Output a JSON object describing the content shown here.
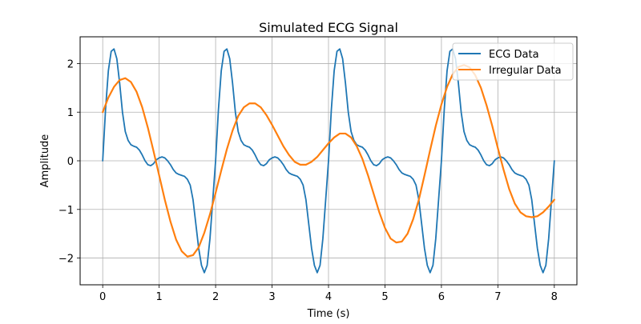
{
  "chart_data": {
    "type": "line",
    "title": "Simulated ECG Signal",
    "xlabel": "Time (s)",
    "ylabel": "Amplitude",
    "xlim": [
      -0.4,
      8.4
    ],
    "ylim": [
      -2.55,
      2.55
    ],
    "x_ticks": [
      0,
      1,
      2,
      3,
      4,
      5,
      6,
      7,
      8
    ],
    "x_tick_labels": [
      "0",
      "1",
      "2",
      "3",
      "4",
      "5",
      "6",
      "7",
      "8"
    ],
    "y_ticks": [
      -2,
      -1,
      0,
      1,
      2
    ],
    "y_tick_labels": [
      "−2",
      "−1",
      "0",
      "1",
      "2"
    ],
    "grid": true,
    "legend_position": "top-right",
    "series": [
      {
        "name": "ECG Data",
        "color": "#1f77b4",
        "points": [
          [
            0.0,
            0.0
          ],
          [
            0.05,
            1.05
          ],
          [
            0.1,
            1.85
          ],
          [
            0.15,
            2.25
          ],
          [
            0.2,
            2.3
          ],
          [
            0.25,
            2.1
          ],
          [
            0.3,
            1.6
          ],
          [
            0.35,
            1.0
          ],
          [
            0.4,
            0.6
          ],
          [
            0.45,
            0.42
          ],
          [
            0.5,
            0.33
          ],
          [
            0.55,
            0.3
          ],
          [
            0.6,
            0.28
          ],
          [
            0.65,
            0.22
          ],
          [
            0.7,
            0.12
          ],
          [
            0.75,
            0.0
          ],
          [
            0.8,
            -0.08
          ],
          [
            0.85,
            -0.1
          ],
          [
            0.9,
            -0.06
          ],
          [
            0.95,
            0.02
          ],
          [
            1.0,
            0.06
          ],
          [
            1.05,
            0.08
          ],
          [
            1.1,
            0.06
          ],
          [
            1.15,
            0.0
          ],
          [
            1.2,
            -0.08
          ],
          [
            1.25,
            -0.18
          ],
          [
            1.3,
            -0.25
          ],
          [
            1.35,
            -0.28
          ],
          [
            1.4,
            -0.3
          ],
          [
            1.45,
            -0.32
          ],
          [
            1.5,
            -0.38
          ],
          [
            1.55,
            -0.5
          ],
          [
            1.6,
            -0.8
          ],
          [
            1.65,
            -1.3
          ],
          [
            1.7,
            -1.8
          ],
          [
            1.75,
            -2.15
          ],
          [
            1.8,
            -2.3
          ],
          [
            1.85,
            -2.15
          ],
          [
            1.9,
            -1.6
          ],
          [
            1.95,
            -0.8
          ],
          [
            2.0,
            0.0
          ],
          [
            2.05,
            1.05
          ],
          [
            2.1,
            1.85
          ],
          [
            2.15,
            2.25
          ],
          [
            2.2,
            2.3
          ],
          [
            2.25,
            2.1
          ],
          [
            2.3,
            1.6
          ],
          [
            2.35,
            1.0
          ],
          [
            2.4,
            0.6
          ],
          [
            2.45,
            0.42
          ],
          [
            2.5,
            0.33
          ],
          [
            2.55,
            0.3
          ],
          [
            2.6,
            0.28
          ],
          [
            2.65,
            0.22
          ],
          [
            2.7,
            0.12
          ],
          [
            2.75,
            0.0
          ],
          [
            2.8,
            -0.08
          ],
          [
            2.85,
            -0.1
          ],
          [
            2.9,
            -0.06
          ],
          [
            2.95,
            0.02
          ],
          [
            3.0,
            0.06
          ],
          [
            3.05,
            0.08
          ],
          [
            3.1,
            0.06
          ],
          [
            3.15,
            0.0
          ],
          [
            3.2,
            -0.08
          ],
          [
            3.25,
            -0.18
          ],
          [
            3.3,
            -0.25
          ],
          [
            3.35,
            -0.28
          ],
          [
            3.4,
            -0.3
          ],
          [
            3.45,
            -0.32
          ],
          [
            3.5,
            -0.38
          ],
          [
            3.55,
            -0.5
          ],
          [
            3.6,
            -0.8
          ],
          [
            3.65,
            -1.3
          ],
          [
            3.7,
            -1.8
          ],
          [
            3.75,
            -2.15
          ],
          [
            3.8,
            -2.3
          ],
          [
            3.85,
            -2.15
          ],
          [
            3.9,
            -1.6
          ],
          [
            3.95,
            -0.8
          ],
          [
            4.0,
            0.0
          ],
          [
            4.05,
            1.05
          ],
          [
            4.1,
            1.85
          ],
          [
            4.15,
            2.25
          ],
          [
            4.2,
            2.3
          ],
          [
            4.25,
            2.1
          ],
          [
            4.3,
            1.6
          ],
          [
            4.35,
            1.0
          ],
          [
            4.4,
            0.6
          ],
          [
            4.45,
            0.42
          ],
          [
            4.5,
            0.33
          ],
          [
            4.55,
            0.3
          ],
          [
            4.6,
            0.28
          ],
          [
            4.65,
            0.22
          ],
          [
            4.7,
            0.12
          ],
          [
            4.75,
            0.0
          ],
          [
            4.8,
            -0.08
          ],
          [
            4.85,
            -0.1
          ],
          [
            4.9,
            -0.06
          ],
          [
            4.95,
            0.02
          ],
          [
            5.0,
            0.06
          ],
          [
            5.05,
            0.08
          ],
          [
            5.1,
            0.06
          ],
          [
            5.15,
            0.0
          ],
          [
            5.2,
            -0.08
          ],
          [
            5.25,
            -0.18
          ],
          [
            5.3,
            -0.25
          ],
          [
            5.35,
            -0.28
          ],
          [
            5.4,
            -0.3
          ],
          [
            5.45,
            -0.32
          ],
          [
            5.5,
            -0.38
          ],
          [
            5.55,
            -0.5
          ],
          [
            5.6,
            -0.8
          ],
          [
            5.65,
            -1.3
          ],
          [
            5.7,
            -1.8
          ],
          [
            5.75,
            -2.15
          ],
          [
            5.8,
            -2.3
          ],
          [
            5.85,
            -2.15
          ],
          [
            5.9,
            -1.6
          ],
          [
            5.95,
            -0.8
          ],
          [
            6.0,
            0.0
          ],
          [
            6.05,
            1.05
          ],
          [
            6.1,
            1.85
          ],
          [
            6.15,
            2.25
          ],
          [
            6.2,
            2.3
          ],
          [
            6.25,
            2.1
          ],
          [
            6.3,
            1.6
          ],
          [
            6.35,
            1.0
          ],
          [
            6.4,
            0.6
          ],
          [
            6.45,
            0.42
          ],
          [
            6.5,
            0.33
          ],
          [
            6.55,
            0.3
          ],
          [
            6.6,
            0.28
          ],
          [
            6.65,
            0.22
          ],
          [
            6.7,
            0.12
          ],
          [
            6.75,
            0.0
          ],
          [
            6.8,
            -0.08
          ],
          [
            6.85,
            -0.1
          ],
          [
            6.9,
            -0.06
          ],
          [
            6.95,
            0.02
          ],
          [
            7.0,
            0.06
          ],
          [
            7.05,
            0.08
          ],
          [
            7.1,
            0.06
          ],
          [
            7.15,
            0.0
          ],
          [
            7.2,
            -0.08
          ],
          [
            7.25,
            -0.18
          ],
          [
            7.3,
            -0.25
          ],
          [
            7.35,
            -0.28
          ],
          [
            7.4,
            -0.3
          ],
          [
            7.45,
            -0.32
          ],
          [
            7.5,
            -0.38
          ],
          [
            7.55,
            -0.5
          ],
          [
            7.6,
            -0.8
          ],
          [
            7.65,
            -1.3
          ],
          [
            7.7,
            -1.8
          ],
          [
            7.75,
            -2.15
          ],
          [
            7.8,
            -2.3
          ],
          [
            7.85,
            -2.15
          ],
          [
            7.9,
            -1.6
          ],
          [
            7.95,
            -0.8
          ],
          [
            8.0,
            0.0
          ]
        ]
      },
      {
        "name": "Irregular Data",
        "color": "#ff7f0e",
        "points": [
          [
            0.0,
            1.0
          ],
          [
            0.1,
            1.3
          ],
          [
            0.2,
            1.52
          ],
          [
            0.3,
            1.66
          ],
          [
            0.4,
            1.7
          ],
          [
            0.5,
            1.62
          ],
          [
            0.6,
            1.42
          ],
          [
            0.7,
            1.1
          ],
          [
            0.8,
            0.68
          ],
          [
            0.9,
            0.2
          ],
          [
            1.0,
            -0.3
          ],
          [
            1.1,
            -0.8
          ],
          [
            1.2,
            -1.25
          ],
          [
            1.3,
            -1.62
          ],
          [
            1.4,
            -1.86
          ],
          [
            1.5,
            -1.97
          ],
          [
            1.6,
            -1.94
          ],
          [
            1.7,
            -1.78
          ],
          [
            1.8,
            -1.48
          ],
          [
            1.9,
            -1.1
          ],
          [
            2.0,
            -0.66
          ],
          [
            2.1,
            -0.2
          ],
          [
            2.2,
            0.24
          ],
          [
            2.3,
            0.62
          ],
          [
            2.4,
            0.92
          ],
          [
            2.5,
            1.1
          ],
          [
            2.6,
            1.18
          ],
          [
            2.7,
            1.18
          ],
          [
            2.8,
            1.1
          ],
          [
            2.9,
            0.94
          ],
          [
            3.0,
            0.74
          ],
          [
            3.1,
            0.52
          ],
          [
            3.2,
            0.3
          ],
          [
            3.3,
            0.12
          ],
          [
            3.4,
            -0.02
          ],
          [
            3.5,
            -0.08
          ],
          [
            3.6,
            -0.08
          ],
          [
            3.7,
            -0.02
          ],
          [
            3.8,
            0.08
          ],
          [
            3.9,
            0.22
          ],
          [
            4.0,
            0.36
          ],
          [
            4.1,
            0.48
          ],
          [
            4.2,
            0.56
          ],
          [
            4.3,
            0.56
          ],
          [
            4.4,
            0.48
          ],
          [
            4.5,
            0.3
          ],
          [
            4.6,
            0.04
          ],
          [
            4.7,
            -0.3
          ],
          [
            4.8,
            -0.68
          ],
          [
            4.9,
            -1.06
          ],
          [
            5.0,
            -1.38
          ],
          [
            5.1,
            -1.6
          ],
          [
            5.2,
            -1.68
          ],
          [
            5.3,
            -1.66
          ],
          [
            5.4,
            -1.5
          ],
          [
            5.5,
            -1.2
          ],
          [
            5.6,
            -0.8
          ],
          [
            5.7,
            -0.3
          ],
          [
            5.8,
            0.22
          ],
          [
            5.9,
            0.72
          ],
          [
            6.0,
            1.16
          ],
          [
            6.1,
            1.52
          ],
          [
            6.2,
            1.78
          ],
          [
            6.3,
            1.93
          ],
          [
            6.4,
            1.97
          ],
          [
            6.5,
            1.92
          ],
          [
            6.6,
            1.76
          ],
          [
            6.7,
            1.5
          ],
          [
            6.8,
            1.14
          ],
          [
            6.9,
            0.72
          ],
          [
            7.0,
            0.26
          ],
          [
            7.1,
            -0.18
          ],
          [
            7.2,
            -0.58
          ],
          [
            7.3,
            -0.88
          ],
          [
            7.4,
            -1.06
          ],
          [
            7.5,
            -1.14
          ],
          [
            7.6,
            -1.16
          ],
          [
            7.7,
            -1.14
          ],
          [
            7.8,
            -1.06
          ],
          [
            7.9,
            -0.94
          ],
          [
            8.0,
            -0.8
          ]
        ]
      }
    ]
  }
}
